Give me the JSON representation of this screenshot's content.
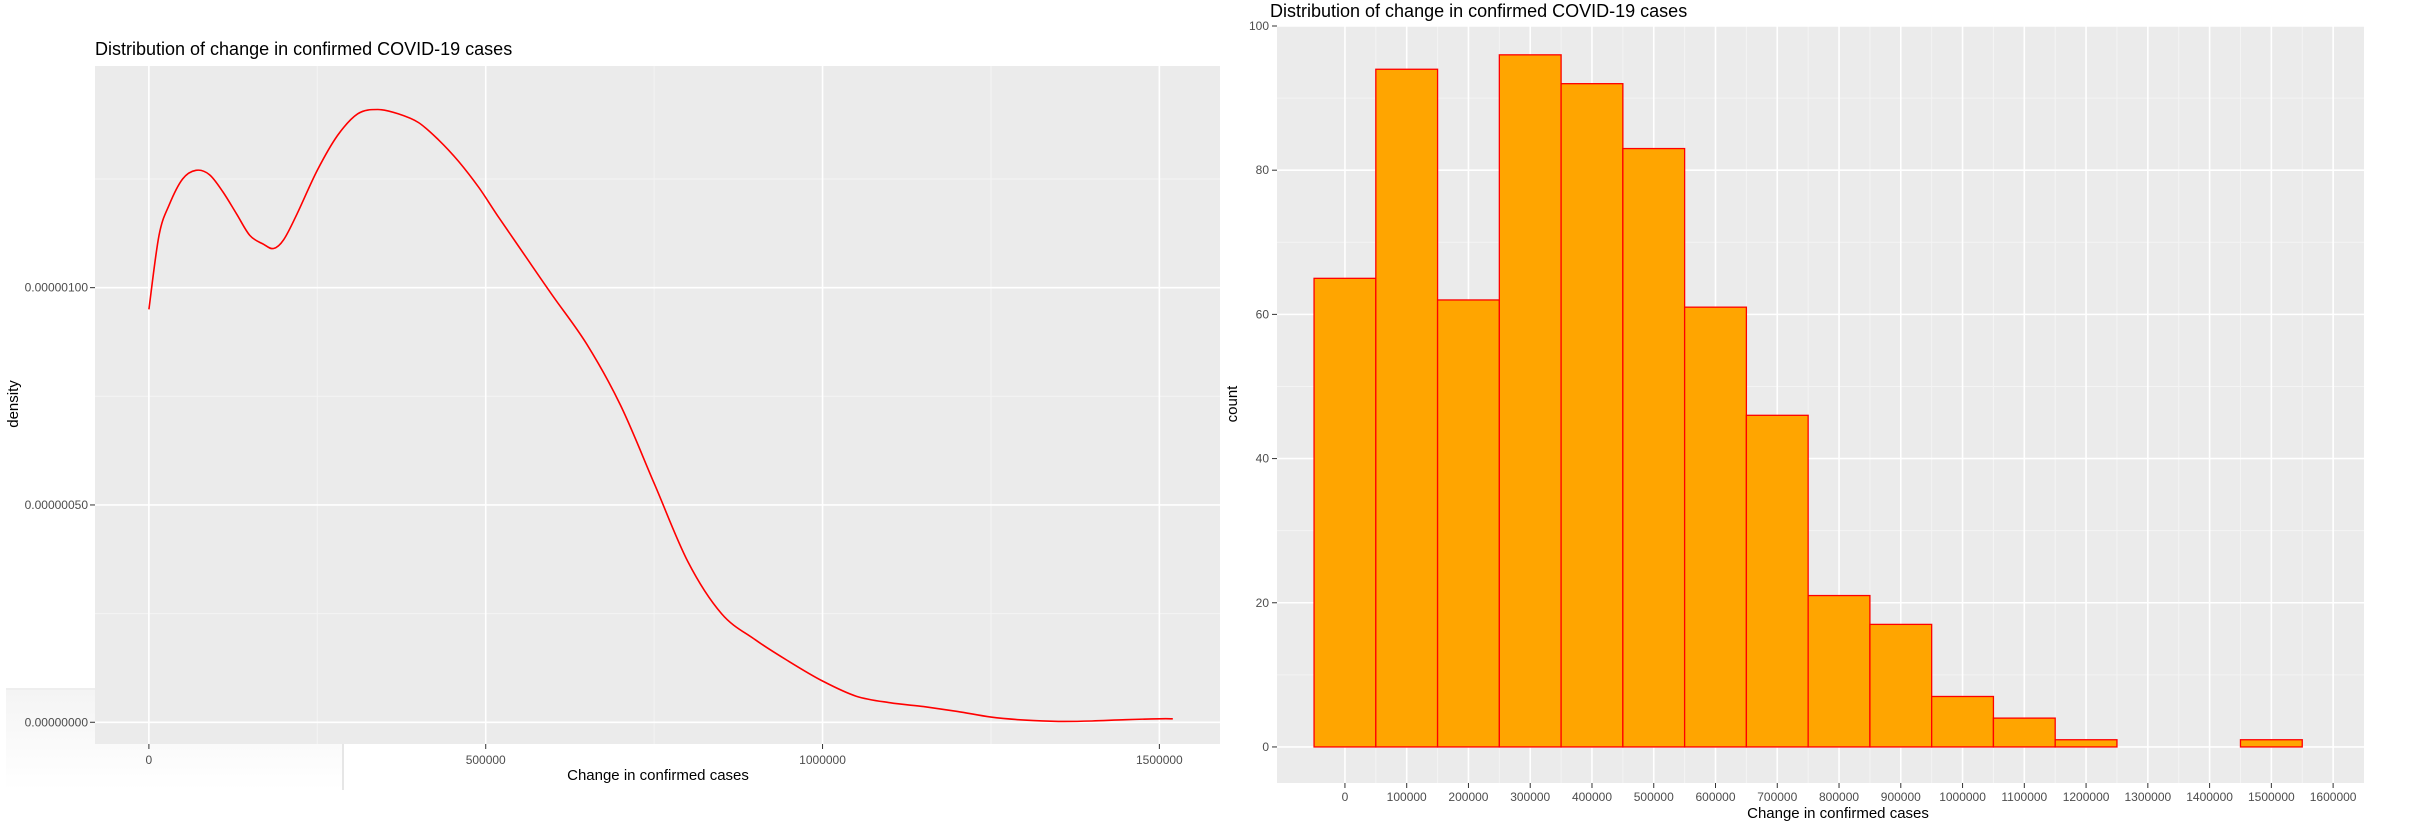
{
  "colors": {
    "panel_bg": "#ebebeb",
    "grid_major": "#ffffff",
    "grid_minor": "#f4f4f4",
    "density_line": "#ff0000",
    "bar_fill": "#ffa500",
    "bar_outline": "#ff0000",
    "tick_text": "#4d4d4d"
  },
  "chart_data": [
    {
      "type": "line",
      "title": "Distribution of change in confirmed COVID-19 cases",
      "xlabel": "Change in confirmed cases",
      "ylabel": "density",
      "xlim": [
        -80000,
        1590000
      ],
      "ylim": [
        -5e-08,
        1.51e-06
      ],
      "grid": true,
      "x_ticks": [
        0,
        500000,
        1000000,
        1500000
      ],
      "x_tick_labels": [
        "0",
        "500000",
        "1000000",
        "1500000"
      ],
      "y_ticks": [
        0,
        5e-07,
        1e-06
      ],
      "y_tick_labels": [
        "0.00000000",
        "0.00000050",
        "0.00000100"
      ],
      "series": [
        {
          "x": [
            0,
            15000,
            30000,
            50000,
            70000,
            90000,
            110000,
            130000,
            150000,
            170000,
            185000,
            200000,
            220000,
            250000,
            280000,
            310000,
            340000,
            370000,
            400000,
            430000,
            460000,
            490000,
            520000,
            560000,
            600000,
            650000,
            700000,
            750000,
            800000,
            850000,
            900000,
            950000,
            1000000,
            1050000,
            1100000,
            1150000,
            1200000,
            1250000,
            1300000,
            1350000,
            1400000,
            1450000,
            1500000,
            1520000
          ],
          "y": [
            9.5e-07,
            1.12e-06,
            1.19e-06,
            1.25e-06,
            1.27e-06,
            1.26e-06,
            1.22e-06,
            1.17e-06,
            1.12e-06,
            1.1e-06,
            1.09e-06,
            1.11e-06,
            1.17e-06,
            1.27e-06,
            1.35e-06,
            1.4e-06,
            1.41e-06,
            1.4e-06,
            1.38e-06,
            1.34e-06,
            1.29e-06,
            1.23e-06,
            1.16e-06,
            1.07e-06,
            9.8e-07,
            8.7e-07,
            7.3e-07,
            5.5e-07,
            3.7e-07,
            2.5e-07,
            1.9e-07,
            1.4e-07,
            9.5e-08,
            6e-08,
            4.5e-08,
            3.6e-08,
            2.5e-08,
            1.2e-08,
            5e-09,
            2e-09,
            3e-09,
            6e-09,
            8e-09,
            8e-09
          ]
        }
      ]
    },
    {
      "type": "bar",
      "title": "Distribution of change in confirmed COVID-19 cases",
      "xlabel": "Change in confirmed cases",
      "ylabel": "count",
      "xlim": [
        -110000,
        1650000
      ],
      "ylim": [
        -5,
        100
      ],
      "grid": true,
      "x_ticks": [
        0,
        100000,
        200000,
        300000,
        400000,
        500000,
        600000,
        700000,
        800000,
        900000,
        1000000,
        1100000,
        1200000,
        1300000,
        1400000,
        1500000,
        1600000
      ],
      "x_tick_labels": [
        "0",
        "100000",
        "200000",
        "300000",
        "400000",
        "500000",
        "600000",
        "700000",
        "800000",
        "900000",
        "1000000",
        "1100000",
        "1200000",
        "1300000",
        "1400000",
        "1500000",
        "1600000"
      ],
      "y_ticks": [
        0,
        20,
        40,
        60,
        80,
        100
      ],
      "y_tick_labels": [
        "0",
        "20",
        "40",
        "60",
        "80",
        "100"
      ],
      "bin_edges": [
        -50000,
        50000,
        150000,
        250000,
        350000,
        450000,
        550000,
        650000,
        750000,
        850000,
        950000,
        1050000,
        1150000,
        1250000,
        1350000,
        1450000,
        1550000
      ],
      "values": [
        65,
        94,
        62,
        96,
        92,
        83,
        61,
        46,
        21,
        17,
        7,
        4,
        1,
        0,
        0,
        1
      ]
    }
  ]
}
